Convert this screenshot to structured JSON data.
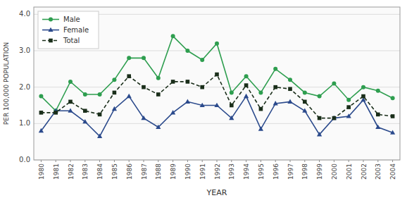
{
  "chart_data": {
    "type": "line",
    "xlabel": "YEAR",
    "ylabel": "PER 100,000 POPULATION",
    "x": [
      1980,
      1981,
      1982,
      1983,
      1984,
      1985,
      1986,
      1987,
      1988,
      1989,
      1990,
      1991,
      1992,
      1993,
      1994,
      1995,
      1996,
      1997,
      1998,
      1999,
      2000,
      2001,
      2002,
      2003,
      2004
    ],
    "series": [
      {
        "name": "Male",
        "color": "#2e9e4f",
        "marker": "circle",
        "line_style": "solid",
        "values": [
          1.75,
          1.35,
          2.15,
          1.8,
          1.8,
          2.2,
          2.8,
          2.8,
          2.25,
          3.4,
          3.0,
          2.75,
          3.2,
          1.85,
          2.3,
          1.85,
          2.5,
          2.2,
          1.85,
          1.75,
          2.1,
          1.65,
          2.0,
          1.9,
          1.7
        ]
      },
      {
        "name": "Female",
        "color": "#2b4a8c",
        "marker": "triangle",
        "line_style": "solid",
        "values": [
          0.8,
          1.35,
          1.35,
          1.05,
          0.65,
          1.4,
          1.75,
          1.15,
          0.9,
          1.3,
          1.6,
          1.5,
          1.5,
          1.15,
          1.75,
          0.85,
          1.55,
          1.6,
          1.35,
          0.7,
          1.15,
          1.2,
          1.65,
          0.9,
          0.75
        ]
      },
      {
        "name": "Total",
        "color": "#1a2e1a",
        "marker": "square",
        "line_style": "dashed",
        "values": [
          1.3,
          1.3,
          1.6,
          1.35,
          1.25,
          1.85,
          2.3,
          2.0,
          1.8,
          2.15,
          2.15,
          2.0,
          2.35,
          1.5,
          2.05,
          1.4,
          2.0,
          1.95,
          1.6,
          1.15,
          1.15,
          1.45,
          1.75,
          1.25,
          1.2
        ]
      }
    ],
    "xlim": [
      1979.5,
      2004.5
    ],
    "xticks": [
      1980,
      1981,
      1982,
      1983,
      1984,
      1985,
      1986,
      1987,
      1988,
      1989,
      1990,
      1991,
      1992,
      1993,
      1994,
      1995,
      1996,
      1997,
      1998,
      1999,
      2000,
      2001,
      2002,
      2003,
      2004
    ],
    "ylim": [
      0.0,
      4.2
    ],
    "yticks": [
      {
        "value": 0,
        "label": "0.0"
      },
      {
        "value": 1,
        "label": "1.0"
      },
      {
        "value": 2,
        "label": "2.0"
      },
      {
        "value": 3,
        "label": "3.0"
      },
      {
        "value": 4,
        "label": "4.0"
      }
    ],
    "grid": true,
    "legend": "upper left"
  }
}
